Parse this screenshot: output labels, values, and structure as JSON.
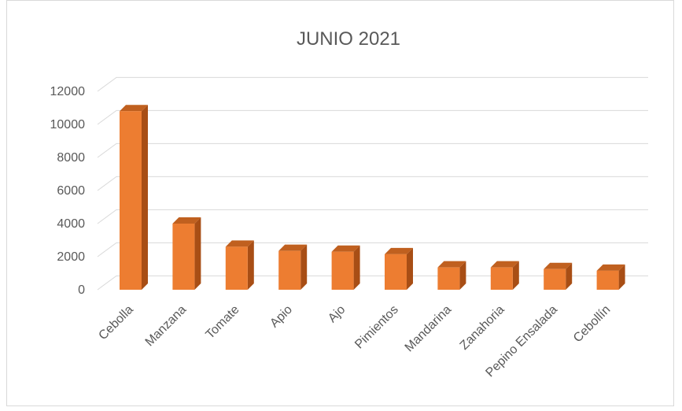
{
  "chart_data": {
    "type": "bar",
    "title": "JUNIO 2021",
    "categories": [
      "Cebolla",
      "Manzana",
      "Tomate",
      "Apio",
      "Ajo",
      "Pimientos",
      "Mandarina",
      "Zanahoria",
      "Pepino Ensalada",
      "Cebollín"
    ],
    "values": [
      10800,
      4000,
      2600,
      2350,
      2300,
      2150,
      1350,
      1350,
      1250,
      1150
    ],
    "ylim": [
      0,
      12000
    ],
    "yticks": [
      0,
      2000,
      4000,
      6000,
      8000,
      10000,
      12000
    ],
    "grid": true,
    "bar_colors": {
      "front": "#ed7d31",
      "side": "#a84e15",
      "top": "#c0601f"
    },
    "grid_color": "#d9d9d9",
    "text_color": "#595959"
  }
}
